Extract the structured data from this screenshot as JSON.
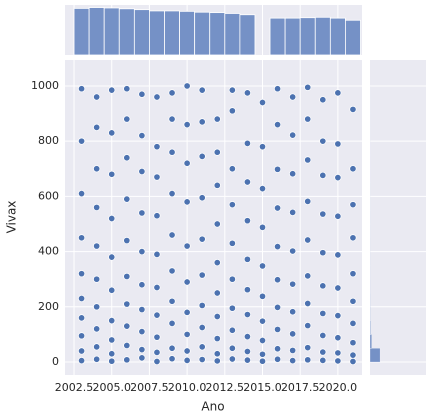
{
  "chart_data": {
    "type": "jointplot",
    "xlabel": "Ano",
    "ylabel": "Vivax",
    "x": [
      2003,
      2003,
      2003,
      2003,
      2003,
      2003,
      2003,
      2003,
      2003,
      2003,
      2004,
      2004,
      2004,
      2004,
      2004,
      2004,
      2004,
      2004,
      2004,
      2004,
      2005,
      2005,
      2005,
      2005,
      2005,
      2005,
      2005,
      2005,
      2005,
      2005,
      2006,
      2006,
      2006,
      2006,
      2006,
      2006,
      2006,
      2006,
      2006,
      2006,
      2007,
      2007,
      2007,
      2007,
      2007,
      2007,
      2007,
      2007,
      2007,
      2007,
      2008,
      2008,
      2008,
      2008,
      2008,
      2008,
      2008,
      2008,
      2008,
      2008,
      2009,
      2009,
      2009,
      2009,
      2009,
      2009,
      2009,
      2009,
      2009,
      2009,
      2010,
      2010,
      2010,
      2010,
      2010,
      2010,
      2010,
      2010,
      2010,
      2010,
      2011,
      2011,
      2011,
      2011,
      2011,
      2011,
      2011,
      2011,
      2011,
      2011,
      2012,
      2012,
      2012,
      2012,
      2012,
      2012,
      2012,
      2012,
      2012,
      2012,
      2013,
      2013,
      2013,
      2013,
      2013,
      2013,
      2013,
      2013,
      2013,
      2013,
      2014,
      2014,
      2014,
      2014,
      2014,
      2014,
      2014,
      2014,
      2014,
      2014,
      2015,
      2015,
      2015,
      2015,
      2015,
      2015,
      2015,
      2015,
      2015,
      2015,
      2016,
      2016,
      2016,
      2016,
      2016,
      2016,
      2016,
      2016,
      2016,
      2016,
      2017,
      2017,
      2017,
      2017,
      2017,
      2017,
      2017,
      2017,
      2017,
      2017,
      2018,
      2018,
      2018,
      2018,
      2018,
      2018,
      2018,
      2018,
      2018,
      2018,
      2019,
      2019,
      2019,
      2019,
      2019,
      2019,
      2019,
      2019,
      2019,
      2019,
      2020,
      2020,
      2020,
      2020,
      2020,
      2020,
      2020,
      2020,
      2020,
      2020,
      2021,
      2021,
      2021,
      2021,
      2021,
      2021,
      2021,
      2021,
      2021,
      2021
    ],
    "y": [
      5,
      40,
      95,
      160,
      230,
      320,
      450,
      610,
      800,
      990,
      10,
      55,
      120,
      200,
      300,
      420,
      560,
      700,
      850,
      960,
      3,
      30,
      80,
      150,
      260,
      380,
      520,
      680,
      830,
      985,
      8,
      60,
      130,
      210,
      310,
      440,
      590,
      740,
      880,
      990,
      15,
      45,
      110,
      190,
      280,
      400,
      540,
      690,
      820,
      970,
      2,
      35,
      90,
      170,
      270,
      390,
      530,
      670,
      780,
      960,
      12,
      50,
      140,
      220,
      330,
      460,
      610,
      760,
      880,
      975,
      6,
      40,
      100,
      180,
      290,
      420,
      580,
      720,
      860,
      1000,
      9,
      55,
      125,
      205,
      315,
      445,
      595,
      745,
      870,
      985,
      4,
      30,
      85,
      165,
      250,
      360,
      500,
      640,
      760,
      880,
      11,
      50,
      115,
      195,
      300,
      430,
      570,
      700,
      910,
      985,
      7,
      38,
      92,
      172,
      262,
      372,
      512,
      652,
      792,
      975,
      3,
      28,
      78,
      148,
      238,
      348,
      488,
      628,
      780,
      940,
      10,
      48,
      118,
      198,
      298,
      418,
      558,
      698,
      860,
      990,
      5,
      42,
      102,
      182,
      282,
      402,
      542,
      682,
      822,
      960,
      8,
      52,
      132,
      212,
      312,
      442,
      582,
      732,
      880,
      995,
      6,
      36,
      96,
      176,
      276,
      396,
      536,
      676,
      800,
      950,
      4,
      33,
      88,
      168,
      268,
      388,
      528,
      668,
      790,
      975,
      2,
      25,
      70,
      140,
      220,
      320,
      450,
      570,
      700,
      915
    ],
    "color": "#4c72b0",
    "hist_color": "#7591c6",
    "xlim": [
      2001.9,
      2021.6
    ],
    "ylim": [
      -47,
      1094
    ],
    "xticks": [
      2002.5,
      {
        "value": 2005,
        "label": "2005.0"
      },
      2007.5,
      {
        "value": 2010,
        "label": "2010.0"
      },
      2012.5,
      {
        "value": 2015,
        "label": "2015.0"
      },
      2017.5,
      {
        "value": 2020,
        "label": "2020.0"
      }
    ],
    "yticks": [
      0,
      200,
      400,
      600,
      800,
      1000
    ],
    "x_hist": {
      "bins": [
        2002.5,
        2003.5,
        2004.5,
        2005.5,
        2006.5,
        2007.5,
        2008.5,
        2009.5,
        2010.5,
        2011.5,
        2012.5,
        2013.5,
        2014.5,
        2015.5,
        2016.5,
        2017.5,
        2018.5,
        2019.5,
        2020.5,
        2021.5
      ],
      "counts": [
        1100,
        1120,
        1110,
        1090,
        1070,
        1040,
        1040,
        1030,
        1010,
        1000,
        980,
        950,
        0,
        870,
        870,
        880,
        890,
        870,
        820
      ],
      "lim": [
        0,
        1180
      ]
    },
    "y_hist": {
      "bins": [
        0,
        50,
        100,
        150,
        200,
        250,
        300,
        350,
        400,
        450,
        500,
        550,
        600,
        650,
        700,
        750,
        800,
        850,
        900,
        950,
        1000
      ],
      "counts": [
        900,
        150,
        60,
        40,
        30,
        25,
        20,
        20,
        18,
        15,
        15,
        12,
        12,
        10,
        10,
        10,
        9,
        8,
        8,
        6
      ],
      "lim": [
        0,
        5000
      ]
    },
    "grid": true
  }
}
